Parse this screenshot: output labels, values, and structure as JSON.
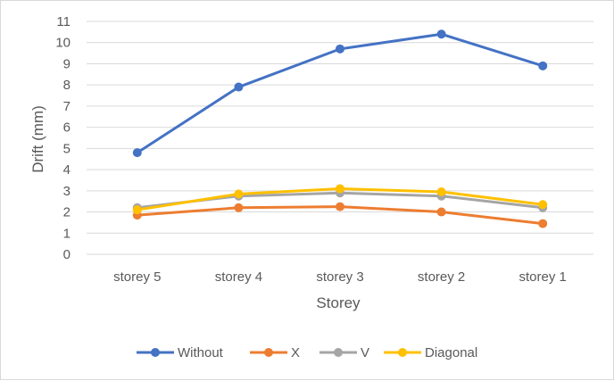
{
  "chart_data": {
    "type": "line",
    "title": "",
    "xlabel": "Storey",
    "ylabel": "Drift (mm)",
    "categories": [
      "storey 5",
      "storey 4",
      "storey 3",
      "storey 2",
      "storey 1"
    ],
    "ylim": [
      0,
      11
    ],
    "yticks": [
      0,
      1,
      2,
      3,
      4,
      5,
      6,
      7,
      8,
      9,
      10,
      11
    ],
    "grid": "horizontal",
    "legend": "bottom",
    "series": [
      {
        "name": "Without",
        "color": "#4472c4",
        "values": [
          4.8,
          7.9,
          9.7,
          10.4,
          8.9
        ]
      },
      {
        "name": "X",
        "color": "#ed7d31",
        "values": [
          1.85,
          2.2,
          2.25,
          2.0,
          1.45
        ]
      },
      {
        "name": "V",
        "color": "#a5a5a5",
        "values": [
          2.2,
          2.75,
          2.9,
          2.75,
          2.2
        ]
      },
      {
        "name": "Diagonal",
        "color": "#ffc000",
        "values": [
          2.1,
          2.85,
          3.1,
          2.95,
          2.35
        ]
      }
    ]
  }
}
